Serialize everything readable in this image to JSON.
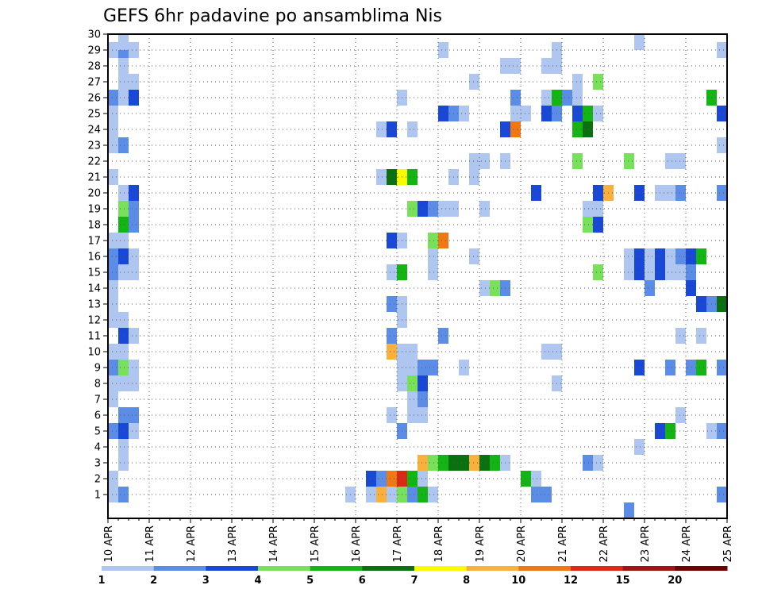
{
  "chart_data": {
    "type": "heatmap",
    "title": "GEFS 6hr padavine po ansamblima Nis",
    "xlabel": "",
    "ylabel": "",
    "x_ticks": [
      "10 APR",
      "11 APR",
      "12 APR",
      "13 APR",
      "14 APR",
      "15 APR",
      "16 APR",
      "17 APR",
      "18 APR",
      "19 APR",
      "20 APR",
      "21 APR",
      "22 APR",
      "23 APR",
      "24 APR",
      "25 APR"
    ],
    "xlim": [
      0,
      60
    ],
    "ylim": [
      0,
      30
    ],
    "y_ticks": [
      "1",
      "2",
      "3",
      "4",
      "5",
      "6",
      "7",
      "8",
      "9",
      "10",
      "11",
      "12",
      "13",
      "14",
      "15",
      "16",
      "17",
      "18",
      "19",
      "20",
      "21",
      "22",
      "23",
      "24",
      "25",
      "26",
      "27",
      "28",
      "29",
      "30"
    ],
    "grid": true,
    "legend": {
      "position": "bottom",
      "levels": [
        "1",
        "2",
        "3",
        "4",
        "5",
        "6",
        "7",
        "8",
        "10",
        "12",
        "15",
        "20"
      ],
      "colors": [
        "#aec6f0",
        "#5c8de6",
        "#1a48d6",
        "#78e05a",
        "#14b414",
        "#0a7010",
        "#fafa00",
        "#fab03c",
        "#f07814",
        "#dc2814",
        "#a01414",
        "#6e0000"
      ]
    },
    "cells_note": "x = 6-hour step index from 10 APR 00Z, y = ensemble member, v = color class index (1..12)",
    "cells": [
      {
        "x": 0,
        "y": 1,
        "v": 1
      },
      {
        "x": 1,
        "y": 1,
        "v": 2
      },
      {
        "x": 0,
        "y": 2,
        "v": 1
      },
      {
        "x": 1,
        "y": 3,
        "v": 1
      },
      {
        "x": 1,
        "y": 4,
        "v": 1
      },
      {
        "x": 0,
        "y": 5,
        "v": 2
      },
      {
        "x": 1,
        "y": 5,
        "v": 3
      },
      {
        "x": 2,
        "y": 5,
        "v": 1
      },
      {
        "x": 1,
        "y": 6,
        "v": 2
      },
      {
        "x": 2,
        "y": 6,
        "v": 2
      },
      {
        "x": 0,
        "y": 7,
        "v": 1
      },
      {
        "x": 0,
        "y": 8,
        "v": 1
      },
      {
        "x": 1,
        "y": 8,
        "v": 1
      },
      {
        "x": 2,
        "y": 8,
        "v": 1
      },
      {
        "x": 0,
        "y": 9,
        "v": 2
      },
      {
        "x": 1,
        "y": 9,
        "v": 4
      },
      {
        "x": 2,
        "y": 9,
        "v": 1
      },
      {
        "x": 0,
        "y": 10,
        "v": 1
      },
      {
        "x": 1,
        "y": 10,
        "v": 1
      },
      {
        "x": 1,
        "y": 11,
        "v": 3
      },
      {
        "x": 2,
        "y": 11,
        "v": 1
      },
      {
        "x": 0,
        "y": 12,
        "v": 1
      },
      {
        "x": 1,
        "y": 12,
        "v": 1
      },
      {
        "x": 0,
        "y": 13,
        "v": 1
      },
      {
        "x": 0,
        "y": 14,
        "v": 1
      },
      {
        "x": 0,
        "y": 15,
        "v": 2
      },
      {
        "x": 1,
        "y": 15,
        "v": 1
      },
      {
        "x": 2,
        "y": 15,
        "v": 1
      },
      {
        "x": 0,
        "y": 16,
        "v": 2
      },
      {
        "x": 1,
        "y": 16,
        "v": 3
      },
      {
        "x": 2,
        "y": 16,
        "v": 1
      },
      {
        "x": 0,
        "y": 17,
        "v": 1
      },
      {
        "x": 1,
        "y": 17,
        "v": 1
      },
      {
        "x": 1,
        "y": 18,
        "v": 5
      },
      {
        "x": 2,
        "y": 18,
        "v": 2
      },
      {
        "x": 1,
        "y": 19,
        "v": 4
      },
      {
        "x": 2,
        "y": 19,
        "v": 2
      },
      {
        "x": 1,
        "y": 20,
        "v": 1
      },
      {
        "x": 2,
        "y": 20,
        "v": 3
      },
      {
        "x": 0,
        "y": 21,
        "v": 1
      },
      {
        "x": 0,
        "y": 23,
        "v": 1
      },
      {
        "x": 1,
        "y": 23,
        "v": 2
      },
      {
        "x": 0,
        "y": 24,
        "v": 1
      },
      {
        "x": 0,
        "y": 25,
        "v": 1
      },
      {
        "x": 0,
        "y": 26,
        "v": 2
      },
      {
        "x": 1,
        "y": 26,
        "v": 1
      },
      {
        "x": 2,
        "y": 26,
        "v": 3
      },
      {
        "x": 1,
        "y": 27,
        "v": 1
      },
      {
        "x": 2,
        "y": 27,
        "v": 1
      },
      {
        "x": 1,
        "y": 28,
        "v": 1
      },
      {
        "x": 0,
        "y": 29,
        "v": 1
      },
      {
        "x": 1,
        "y": 29,
        "v": 2
      },
      {
        "x": 2,
        "y": 29,
        "v": 1
      },
      {
        "x": 1,
        "y": 30,
        "v": 1
      },
      {
        "x": 23,
        "y": 1,
        "v": 1
      },
      {
        "x": 25,
        "y": 1,
        "v": 1
      },
      {
        "x": 26,
        "y": 1,
        "v": 8
      },
      {
        "x": 27,
        "y": 1,
        "v": 1
      },
      {
        "x": 28,
        "y": 1,
        "v": 4
      },
      {
        "x": 29,
        "y": 1,
        "v": 2
      },
      {
        "x": 30,
        "y": 1,
        "v": 5
      },
      {
        "x": 31,
        "y": 1,
        "v": 1
      },
      {
        "x": 41,
        "y": 1,
        "v": 2
      },
      {
        "x": 42,
        "y": 1,
        "v": 2
      },
      {
        "x": 59,
        "y": 1,
        "v": 2
      },
      {
        "x": 25,
        "y": 2,
        "v": 3
      },
      {
        "x": 26,
        "y": 2,
        "v": 2
      },
      {
        "x": 27,
        "y": 2,
        "v": 9
      },
      {
        "x": 28,
        "y": 2,
        "v": 10
      },
      {
        "x": 29,
        "y": 2,
        "v": 5
      },
      {
        "x": 30,
        "y": 2,
        "v": 1
      },
      {
        "x": 40,
        "y": 2,
        "v": 5
      },
      {
        "x": 41,
        "y": 2,
        "v": 1
      },
      {
        "x": 30,
        "y": 3,
        "v": 8
      },
      {
        "x": 31,
        "y": 3,
        "v": 4
      },
      {
        "x": 32,
        "y": 3,
        "v": 5
      },
      {
        "x": 33,
        "y": 3,
        "v": 6
      },
      {
        "x": 34,
        "y": 3,
        "v": 6
      },
      {
        "x": 35,
        "y": 3,
        "v": 8
      },
      {
        "x": 36,
        "y": 3,
        "v": 6
      },
      {
        "x": 37,
        "y": 3,
        "v": 5
      },
      {
        "x": 38,
        "y": 3,
        "v": 1
      },
      {
        "x": 46,
        "y": 3,
        "v": 2
      },
      {
        "x": 47,
        "y": 3,
        "v": 1
      },
      {
        "x": 51,
        "y": 4,
        "v": 1
      },
      {
        "x": 28,
        "y": 5,
        "v": 2
      },
      {
        "x": 53,
        "y": 5,
        "v": 3
      },
      {
        "x": 54,
        "y": 5,
        "v": 5
      },
      {
        "x": 58,
        "y": 5,
        "v": 1
      },
      {
        "x": 59,
        "y": 5,
        "v": 2
      },
      {
        "x": 27,
        "y": 6,
        "v": 1
      },
      {
        "x": 29,
        "y": 6,
        "v": 1
      },
      {
        "x": 30,
        "y": 6,
        "v": 1
      },
      {
        "x": 55,
        "y": 6,
        "v": 1
      },
      {
        "x": 29,
        "y": 7,
        "v": 1
      },
      {
        "x": 30,
        "y": 7,
        "v": 2
      },
      {
        "x": 28,
        "y": 8,
        "v": 1
      },
      {
        "x": 29,
        "y": 8,
        "v": 4
      },
      {
        "x": 30,
        "y": 8,
        "v": 3
      },
      {
        "x": 43,
        "y": 8,
        "v": 1
      },
      {
        "x": 28,
        "y": 9,
        "v": 1
      },
      {
        "x": 29,
        "y": 9,
        "v": 1
      },
      {
        "x": 30,
        "y": 9,
        "v": 2
      },
      {
        "x": 31,
        "y": 9,
        "v": 2
      },
      {
        "x": 34,
        "y": 9,
        "v": 1
      },
      {
        "x": 51,
        "y": 9,
        "v": 3
      },
      {
        "x": 54,
        "y": 9,
        "v": 2
      },
      {
        "x": 56,
        "y": 9,
        "v": 2
      },
      {
        "x": 57,
        "y": 9,
        "v": 5
      },
      {
        "x": 59,
        "y": 9,
        "v": 2
      },
      {
        "x": 27,
        "y": 10,
        "v": 8
      },
      {
        "x": 28,
        "y": 10,
        "v": 1
      },
      {
        "x": 29,
        "y": 10,
        "v": 1
      },
      {
        "x": 42,
        "y": 10,
        "v": 1
      },
      {
        "x": 43,
        "y": 10,
        "v": 1
      },
      {
        "x": 27,
        "y": 11,
        "v": 2
      },
      {
        "x": 32,
        "y": 11,
        "v": 2
      },
      {
        "x": 55,
        "y": 11,
        "v": 1
      },
      {
        "x": 57,
        "y": 11,
        "v": 1
      },
      {
        "x": 28,
        "y": 12,
        "v": 1
      },
      {
        "x": 27,
        "y": 13,
        "v": 2
      },
      {
        "x": 28,
        "y": 13,
        "v": 1
      },
      {
        "x": 57,
        "y": 13,
        "v": 3
      },
      {
        "x": 58,
        "y": 13,
        "v": 2
      },
      {
        "x": 59,
        "y": 13,
        "v": 6
      },
      {
        "x": 36,
        "y": 14,
        "v": 1
      },
      {
        "x": 37,
        "y": 14,
        "v": 4
      },
      {
        "x": 38,
        "y": 14,
        "v": 2
      },
      {
        "x": 56,
        "y": 14,
        "v": 3
      },
      {
        "x": 27,
        "y": 15,
        "v": 1
      },
      {
        "x": 28,
        "y": 15,
        "v": 5
      },
      {
        "x": 31,
        "y": 15,
        "v": 1
      },
      {
        "x": 47,
        "y": 15,
        "v": 4
      },
      {
        "x": 50,
        "y": 15,
        "v": 1
      },
      {
        "x": 51,
        "y": 15,
        "v": 3
      },
      {
        "x": 52,
        "y": 15,
        "v": 1
      },
      {
        "x": 53,
        "y": 15,
        "v": 3
      },
      {
        "x": 54,
        "y": 15,
        "v": 1
      },
      {
        "x": 55,
        "y": 15,
        "v": 1
      },
      {
        "x": 56,
        "y": 15,
        "v": 2
      },
      {
        "x": 52,
        "y": 14,
        "v": 2
      },
      {
        "x": 35,
        "y": 16,
        "v": 1
      },
      {
        "x": 50,
        "y": 16,
        "v": 1
      },
      {
        "x": 51,
        "y": 16,
        "v": 3
      },
      {
        "x": 52,
        "y": 16,
        "v": 1
      },
      {
        "x": 53,
        "y": 16,
        "v": 3
      },
      {
        "x": 54,
        "y": 16,
        "v": 1
      },
      {
        "x": 55,
        "y": 16,
        "v": 2
      },
      {
        "x": 56,
        "y": 16,
        "v": 3
      },
      {
        "x": 57,
        "y": 16,
        "v": 5
      },
      {
        "x": 27,
        "y": 17,
        "v": 3
      },
      {
        "x": 28,
        "y": 17,
        "v": 1
      },
      {
        "x": 31,
        "y": 17,
        "v": 4
      },
      {
        "x": 32,
        "y": 17,
        "v": 9
      },
      {
        "x": 31,
        "y": 16,
        "v": 1
      },
      {
        "x": 46,
        "y": 18,
        "v": 4
      },
      {
        "x": 47,
        "y": 18,
        "v": 3
      },
      {
        "x": 29,
        "y": 19,
        "v": 4
      },
      {
        "x": 30,
        "y": 19,
        "v": 3
      },
      {
        "x": 31,
        "y": 19,
        "v": 2
      },
      {
        "x": 32,
        "y": 19,
        "v": 1
      },
      {
        "x": 33,
        "y": 19,
        "v": 1
      },
      {
        "x": 36,
        "y": 19,
        "v": 1
      },
      {
        "x": 46,
        "y": 19,
        "v": 1
      },
      {
        "x": 47,
        "y": 19,
        "v": 1
      },
      {
        "x": 41,
        "y": 20,
        "v": 3
      },
      {
        "x": 47,
        "y": 20,
        "v": 3
      },
      {
        "x": 48,
        "y": 20,
        "v": 8
      },
      {
        "x": 51,
        "y": 20,
        "v": 3
      },
      {
        "x": 53,
        "y": 20,
        "v": 1
      },
      {
        "x": 54,
        "y": 20,
        "v": 1
      },
      {
        "x": 55,
        "y": 20,
        "v": 2
      },
      {
        "x": 59,
        "y": 20,
        "v": 2
      },
      {
        "x": 26,
        "y": 21,
        "v": 1
      },
      {
        "x": 27,
        "y": 21,
        "v": 6
      },
      {
        "x": 28,
        "y": 21,
        "v": 7
      },
      {
        "x": 29,
        "y": 21,
        "v": 5
      },
      {
        "x": 33,
        "y": 21,
        "v": 1
      },
      {
        "x": 35,
        "y": 21,
        "v": 1
      },
      {
        "x": 35,
        "y": 22,
        "v": 1
      },
      {
        "x": 36,
        "y": 22,
        "v": 1
      },
      {
        "x": 38,
        "y": 22,
        "v": 1
      },
      {
        "x": 45,
        "y": 22,
        "v": 4
      },
      {
        "x": 50,
        "y": 22,
        "v": 4
      },
      {
        "x": 54,
        "y": 22,
        "v": 1
      },
      {
        "x": 55,
        "y": 22,
        "v": 1
      },
      {
        "x": 59,
        "y": 23,
        "v": 1
      },
      {
        "x": 26,
        "y": 24,
        "v": 1
      },
      {
        "x": 27,
        "y": 24,
        "v": 3
      },
      {
        "x": 29,
        "y": 24,
        "v": 1
      },
      {
        "x": 38,
        "y": 24,
        "v": 3
      },
      {
        "x": 39,
        "y": 24,
        "v": 9
      },
      {
        "x": 45,
        "y": 24,
        "v": 5
      },
      {
        "x": 46,
        "y": 24,
        "v": 6
      },
      {
        "x": 32,
        "y": 25,
        "v": 3
      },
      {
        "x": 33,
        "y": 25,
        "v": 2
      },
      {
        "x": 34,
        "y": 25,
        "v": 1
      },
      {
        "x": 39,
        "y": 25,
        "v": 1
      },
      {
        "x": 40,
        "y": 25,
        "v": 1
      },
      {
        "x": 42,
        "y": 25,
        "v": 3
      },
      {
        "x": 43,
        "y": 25,
        "v": 2
      },
      {
        "x": 45,
        "y": 25,
        "v": 3
      },
      {
        "x": 46,
        "y": 25,
        "v": 5
      },
      {
        "x": 47,
        "y": 25,
        "v": 1
      },
      {
        "x": 59,
        "y": 25,
        "v": 3
      },
      {
        "x": 28,
        "y": 26,
        "v": 1
      },
      {
        "x": 39,
        "y": 26,
        "v": 2
      },
      {
        "x": 42,
        "y": 26,
        "v": 1
      },
      {
        "x": 43,
        "y": 26,
        "v": 5
      },
      {
        "x": 44,
        "y": 26,
        "v": 2
      },
      {
        "x": 45,
        "y": 26,
        "v": 1
      },
      {
        "x": 58,
        "y": 26,
        "v": 5
      },
      {
        "x": 35,
        "y": 27,
        "v": 1
      },
      {
        "x": 45,
        "y": 27,
        "v": 1
      },
      {
        "x": 47,
        "y": 27,
        "v": 4
      },
      {
        "x": 38,
        "y": 28,
        "v": 1
      },
      {
        "x": 39,
        "y": 28,
        "v": 1
      },
      {
        "x": 42,
        "y": 28,
        "v": 1
      },
      {
        "x": 43,
        "y": 28,
        "v": 1
      },
      {
        "x": 32,
        "y": 29,
        "v": 1
      },
      {
        "x": 43,
        "y": 29,
        "v": 1
      },
      {
        "x": 59,
        "y": 29,
        "v": 1
      },
      {
        "x": 51,
        "y": 30,
        "v": 1
      },
      {
        "x": 50,
        "y": 0,
        "v": 2
      }
    ]
  }
}
